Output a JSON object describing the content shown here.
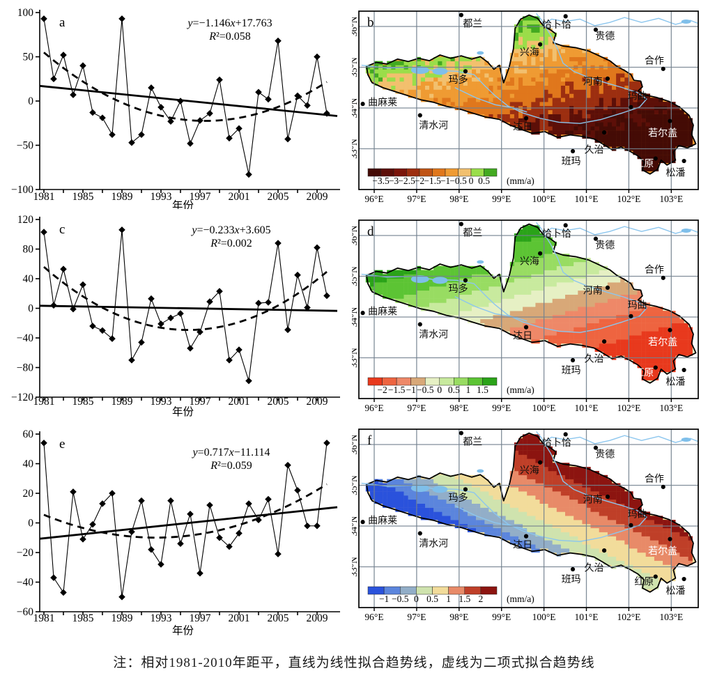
{
  "caption": "注：相对1981-2010年距平，直线为线性拟合趋势线，虚线为二项式拟合趋势线",
  "chart_data": [
    {
      "id": "a",
      "type": "line",
      "panel_label": "a",
      "x_start": 1981,
      "x_end": 2010,
      "xlabel": "年份",
      "xticks": [
        1981,
        1985,
        1989,
        1993,
        1997,
        2001,
        2005,
        2009
      ],
      "ylim": [
        -100,
        100
      ],
      "yticks": [
        100,
        50,
        0,
        -50,
        -100
      ],
      "equation": "y=−1.146x+17.763",
      "r2": "R²=0.058",
      "trend": {
        "slope": -1.146,
        "intercept": 17.763
      },
      "values": [
        93,
        25,
        52,
        7,
        40,
        -13,
        -19,
        -38,
        93,
        -47,
        -38,
        15,
        -7,
        -23,
        0,
        -48,
        -22,
        -14,
        24,
        -42,
        -31,
        -83,
        10,
        2,
        68,
        -43,
        6,
        -5,
        50,
        -14
      ]
    },
    {
      "id": "c",
      "type": "line",
      "panel_label": "c",
      "x_start": 1981,
      "x_end": 2010,
      "xlabel": "年份",
      "xticks": [
        1981,
        1985,
        1989,
        1993,
        1997,
        2001,
        2005,
        2009
      ],
      "ylim": [
        -120,
        120
      ],
      "yticks": [
        120,
        80,
        40,
        0,
        -40,
        -80,
        -120
      ],
      "equation": "y=−0.233x+3.605",
      "r2": "R²=0.002",
      "trend": {
        "slope": -0.233,
        "intercept": 3.605
      },
      "values": [
        103,
        4,
        53,
        -1,
        32,
        -24,
        -30,
        -41,
        106,
        -70,
        -46,
        13,
        -21,
        -13,
        -7,
        -54,
        -32,
        9,
        23,
        -70,
        -56,
        -98,
        7,
        8,
        88,
        -29,
        45,
        1,
        82,
        17
      ]
    },
    {
      "id": "e",
      "type": "line",
      "panel_label": "e",
      "x_start": 1981,
      "x_end": 2010,
      "xlabel": "年份",
      "xticks": [
        1981,
        1985,
        1989,
        1993,
        1997,
        2001,
        2005,
        2009
      ],
      "ylim": [
        -60,
        60
      ],
      "yticks": [
        60,
        40,
        20,
        0,
        -20,
        -40,
        -60
      ],
      "equation": "y=0.717x−11.114",
      "r2": "R²=0.059",
      "trend": {
        "slope": 0.717,
        "intercept": -11.114
      },
      "values": [
        54,
        -37,
        -47,
        21,
        -11,
        -1,
        13,
        20,
        -50,
        -6,
        15,
        -18,
        -28,
        15,
        -14,
        6,
        -34,
        12,
        -10,
        -16,
        -7,
        13,
        2,
        16,
        -21,
        39,
        22,
        -2,
        -2,
        54
      ]
    }
  ],
  "map_panels": [
    {
      "id": "b",
      "type": "heatmap",
      "panel_label": "b",
      "unit": "(mm/a)",
      "legend_labels": [
        "−3.5",
        "−3",
        "−2.5",
        "−2",
        "−1.5",
        "−1",
        "−0.5",
        "0",
        "0.5"
      ],
      "legend_colors": [
        "#440b05",
        "#5c0f08",
        "#7a150a",
        "#9c2e10",
        "#c05415",
        "#e0771c",
        "#ef9b33",
        "#f2c06e",
        "#9ade4a",
        "#43aa21"
      ]
    },
    {
      "id": "d",
      "type": "heatmap",
      "panel_label": "d",
      "unit": "(mm/a)",
      "legend_labels": [
        "−2",
        "−1.5",
        "−1",
        "−0.5",
        "0",
        "0.5",
        "1",
        "1.5"
      ],
      "legend_colors": [
        "#e8391d",
        "#ee6440",
        "#ee8868",
        "#d8a878",
        "#e6f0c4",
        "#c8ea9e",
        "#98dc62",
        "#5cc434",
        "#2aa318"
      ]
    },
    {
      "id": "f",
      "type": "heatmap",
      "panel_label": "f",
      "unit": "(mm/a)",
      "legend_labels": [
        "−1",
        "−0.5",
        "0",
        "0.5",
        "1",
        "1.5",
        "2"
      ],
      "legend_colors": [
        "#2a52dc",
        "#5b85dd",
        "#92aec8",
        "#cfe3ae",
        "#f2dc9b",
        "#e88a68",
        "#bf3f28",
        "#8c1410"
      ]
    }
  ],
  "maps": {
    "x_tick_labels": [
      "96°E",
      "97°E",
      "98°E",
      "99°E",
      "100°E",
      "101°E",
      "102°E",
      "103°E"
    ],
    "y_tick_labels": [
      "36°N",
      "35°N",
      "34°N",
      "33°N"
    ],
    "river_color": "#8cc6ee",
    "lake_color": "#7fbfea",
    "grid_color": "#73828f",
    "cities": [
      {
        "name": "都兰",
        "dot": [
          98.05,
          36.28
        ],
        "label": [
          98.32,
          36.06
        ],
        "white": []
      },
      {
        "name": "恰卜恰",
        "dot": [
          100.51,
          36.25
        ],
        "label": [
          100.3,
          36.03
        ],
        "white": []
      },
      {
        "name": "贵德",
        "dot": [
          101.22,
          35.92
        ],
        "label": [
          101.44,
          35.75
        ],
        "white": []
      },
      {
        "name": "兴海",
        "dot": [
          99.91,
          35.56
        ],
        "label": [
          99.66,
          35.36
        ],
        "white": []
      },
      {
        "name": "合作",
        "dot": [
          102.81,
          34.96
        ],
        "label": [
          102.6,
          35.15
        ],
        "white": []
      },
      {
        "name": "玛多",
        "dot": [
          98.15,
          34.9
        ],
        "label": [
          97.98,
          34.68
        ],
        "white": []
      },
      {
        "name": "河南",
        "dot": [
          101.5,
          34.72
        ],
        "label": [
          101.15,
          34.64
        ],
        "white": []
      },
      {
        "name": "曲麻莱",
        "dot": [
          95.73,
          34.1
        ],
        "label": [
          96.2,
          34.13
        ],
        "white": []
      },
      {
        "name": "玛曲",
        "dot": [
          102.05,
          34.02
        ],
        "label": [
          102.2,
          34.28
        ],
        "white": []
      },
      {
        "name": "清水河",
        "dot": [
          97.08,
          33.82
        ],
        "label": [
          97.4,
          33.56
        ],
        "white": []
      },
      {
        "name": "达日",
        "dot": [
          99.58,
          33.75
        ],
        "label": [
          99.5,
          33.53
        ],
        "white": []
      },
      {
        "name": "若尔盖",
        "dot": [
          102.97,
          33.68
        ],
        "label": [
          102.8,
          33.38
        ],
        "white": [
          "b",
          "d",
          "f"
        ]
      },
      {
        "name": "久治",
        "dot": [
          101.42,
          33.4
        ],
        "label": [
          101.18,
          32.97
        ],
        "white": []
      },
      {
        "name": "班玛",
        "dot": [
          100.68,
          32.94
        ],
        "label": [
          100.64,
          32.68
        ],
        "white": []
      },
      {
        "name": "红原",
        "dot": [
          102.63,
          32.76
        ],
        "label": [
          102.36,
          32.62
        ],
        "white": [
          "b",
          "d"
        ]
      },
      {
        "name": "松潘",
        "dot": [
          103.3,
          32.7
        ],
        "label": [
          103.1,
          32.4
        ],
        "white": []
      }
    ]
  }
}
